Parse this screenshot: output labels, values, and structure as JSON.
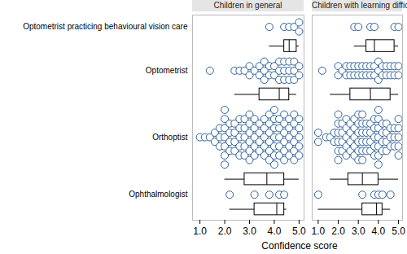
{
  "chart_data": {
    "type": "box_dot",
    "categories": [
      "Optometrist practicing behavioural vision care",
      "Optometrist",
      "Orthoptist",
      "Ophthalmologist"
    ],
    "x_label": "Confidence score",
    "xlim": [
      0.7,
      5.2
    ],
    "xticks": [
      1,
      2,
      3,
      4,
      5
    ],
    "color": "#2f6199",
    "panels": [
      {
        "title": "Children in general",
        "values": [
          [
            3.8,
            4.4,
            4.6,
            4.8,
            5.0,
            5.0
          ],
          [
            1.4,
            2.4,
            2.6,
            2.8,
            3.0,
            3.0,
            3.2,
            3.4,
            3.4,
            3.6,
            3.6,
            3.6,
            3.8,
            3.8,
            4.0,
            4.0,
            4.2,
            4.2,
            4.2,
            4.4,
            4.4,
            4.4,
            4.6,
            4.6,
            4.6,
            4.8,
            4.8,
            4.8,
            5.0,
            5.0
          ],
          [
            1.0,
            1.2,
            1.4,
            1.6,
            1.6,
            1.8,
            1.8,
            1.8,
            2.0,
            2.0,
            2.0,
            2.0,
            2.0,
            2.0,
            2.0,
            2.2,
            2.2,
            2.2,
            2.2,
            2.4,
            2.4,
            2.4,
            2.4,
            2.6,
            2.6,
            2.6,
            2.6,
            2.6,
            2.8,
            2.8,
            2.8,
            2.8,
            2.8,
            3.0,
            3.0,
            3.0,
            3.0,
            3.0,
            3.0,
            3.2,
            3.2,
            3.2,
            3.2,
            3.2,
            3.4,
            3.4,
            3.4,
            3.4,
            3.6,
            3.6,
            3.6,
            3.6,
            3.6,
            3.8,
            3.8,
            3.8,
            3.8,
            3.8,
            3.8,
            4.0,
            4.0,
            4.0,
            4.0,
            4.0,
            4.0,
            4.0,
            4.2,
            4.2,
            4.2,
            4.2,
            4.2,
            4.4,
            4.4,
            4.4,
            4.4,
            4.4,
            4.4,
            4.6,
            4.6,
            4.6,
            4.6,
            4.6,
            4.8,
            4.8,
            4.8,
            4.8,
            4.8,
            4.8,
            5.0,
            5.0,
            5.0,
            5.0,
            5.0
          ],
          [
            2.2,
            3.2,
            3.8,
            4.2,
            4.4
          ]
        ],
        "boxes": [
          {
            "low": 3.8,
            "q1": 4.4,
            "median": 4.6,
            "q3": 4.9,
            "high": 5.0
          },
          {
            "low": 2.4,
            "q1": 3.4,
            "median": 4.2,
            "q3": 4.6,
            "high": 4.9
          },
          {
            "low": 2.0,
            "q1": 2.8,
            "median": 3.7,
            "q3": 4.4,
            "high": 5.0
          },
          {
            "low": 2.2,
            "q1": 3.2,
            "median": 4.1,
            "q3": 4.4,
            "high": 4.5
          }
        ]
      },
      {
        "title": "Children with learning difficulties",
        "values": [
          [
            2.8,
            3.0,
            3.6,
            3.8,
            4.8,
            5.0
          ],
          [
            1.2,
            2.0,
            2.0,
            2.2,
            2.4,
            2.4,
            2.6,
            2.6,
            2.8,
            2.8,
            3.0,
            3.0,
            3.2,
            3.2,
            3.4,
            3.4,
            3.6,
            3.6,
            3.8,
            3.8,
            4.0,
            4.0,
            4.0,
            4.2,
            4.2,
            4.4,
            4.4,
            4.6,
            4.6,
            4.8,
            4.8,
            5.0,
            5.0
          ],
          [
            1.0,
            1.0,
            1.4,
            1.6,
            1.8,
            1.8,
            2.0,
            2.0,
            2.0,
            2.0,
            2.0,
            2.0,
            2.2,
            2.2,
            2.2,
            2.2,
            2.4,
            2.4,
            2.4,
            2.4,
            2.4,
            2.6,
            2.6,
            2.6,
            2.6,
            2.8,
            2.8,
            2.8,
            2.8,
            2.8,
            3.0,
            3.0,
            3.0,
            3.0,
            3.0,
            3.0,
            3.2,
            3.2,
            3.2,
            3.2,
            3.2,
            3.2,
            3.4,
            3.4,
            3.4,
            3.4,
            3.6,
            3.6,
            3.6,
            3.6,
            3.8,
            3.8,
            3.8,
            3.8,
            3.8,
            4.0,
            4.0,
            4.0,
            4.0,
            4.0,
            4.0,
            4.0,
            4.2,
            4.2,
            4.2,
            4.2,
            4.4,
            4.4,
            4.4,
            4.4,
            4.6,
            4.6,
            4.6,
            4.8,
            4.8,
            4.8,
            5.0,
            5.0,
            5.0,
            5.0,
            5.0
          ],
          [
            1.0,
            3.2,
            3.8,
            4.0,
            4.2,
            4.6
          ]
        ],
        "boxes": [
          {
            "low": 2.8,
            "q1": 3.4,
            "median": 3.8,
            "q3": 4.8,
            "high": 5.0
          },
          {
            "low": 1.6,
            "q1": 2.6,
            "median": 3.6,
            "q3": 4.6,
            "high": 5.0
          },
          {
            "low": 1.6,
            "q1": 2.5,
            "median": 3.2,
            "q3": 4.0,
            "high": 5.0
          },
          {
            "low": 1.0,
            "q1": 3.2,
            "median": 3.9,
            "q3": 4.2,
            "high": 4.6
          }
        ]
      }
    ]
  }
}
